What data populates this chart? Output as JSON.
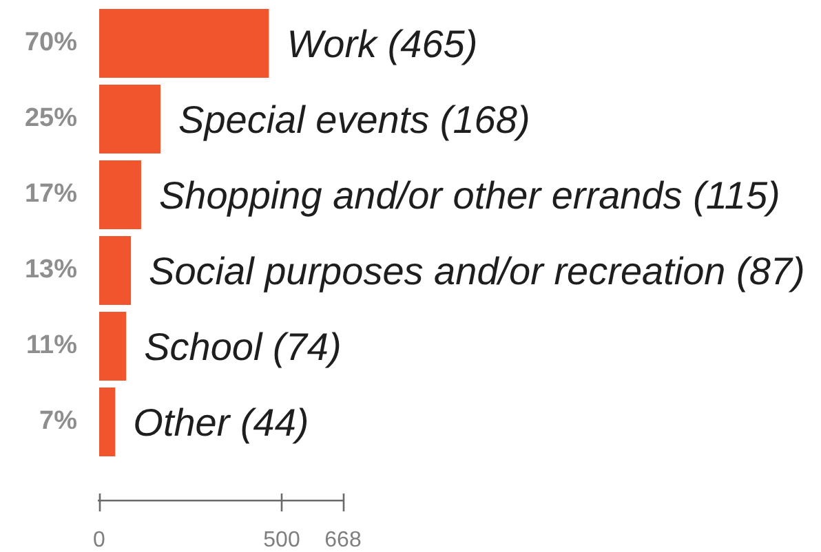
{
  "chart_data": {
    "type": "bar",
    "orientation": "horizontal",
    "categories": [
      "70%",
      "25%",
      "17%",
      "13%",
      "11%",
      "7%"
    ],
    "values": [
      465,
      168,
      115,
      87,
      74,
      44
    ],
    "color": "#f0552d",
    "value_labels": [
      "Work (465)",
      "Special events (168)",
      "Shopping and/or other errands (115)",
      "Social purposes and/or recreation (87)",
      "School (74)",
      "Other (44)"
    ],
    "xlim": [
      0,
      668
    ],
    "xticks": [
      0,
      500,
      668
    ],
    "grid": false,
    "legend": false
  }
}
